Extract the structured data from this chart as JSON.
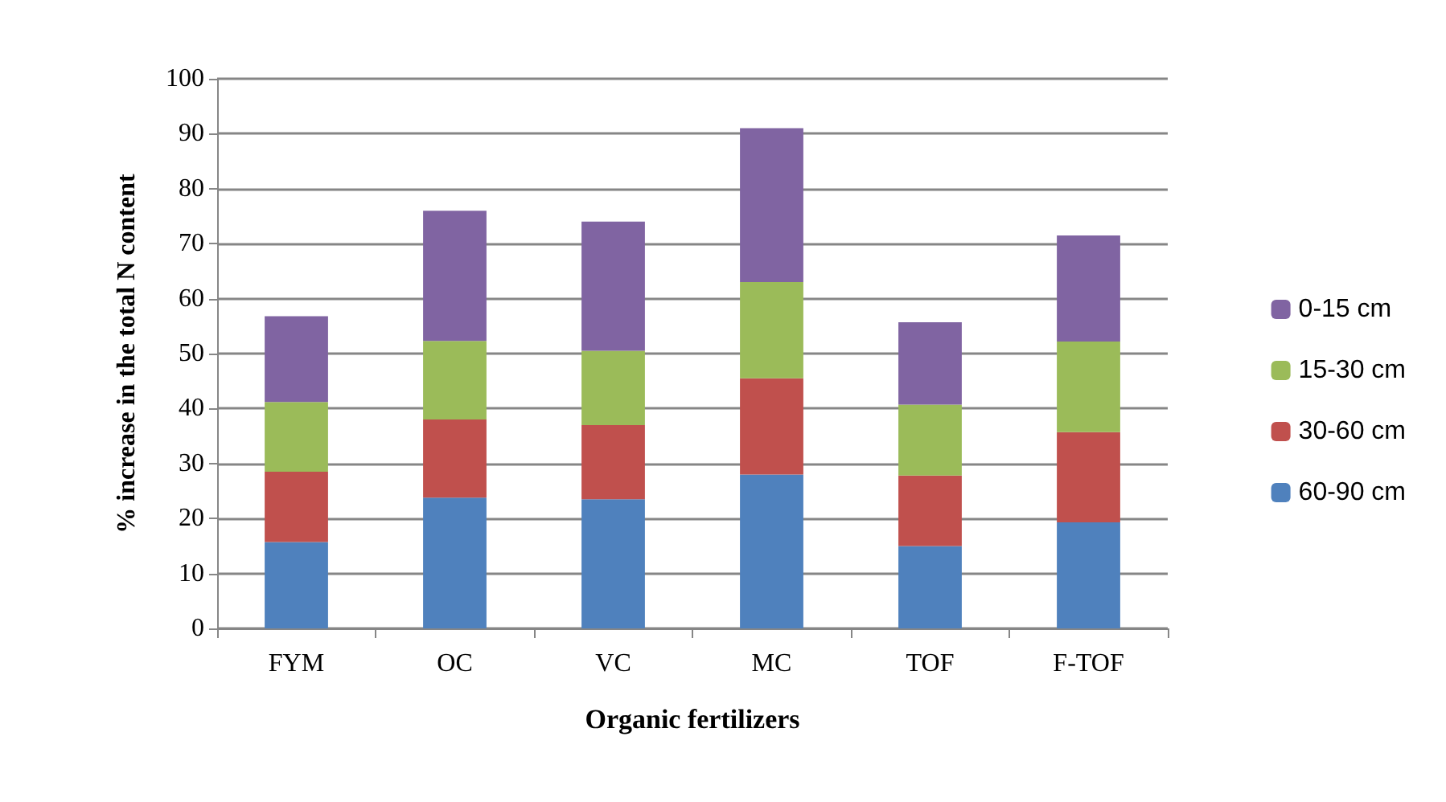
{
  "chart_data": {
    "type": "bar",
    "stacked": true,
    "xlabel": "Organic fertilizers",
    "ylabel": "% increase in the total N content",
    "categories": [
      "FYM",
      "OC",
      "VC",
      "MC",
      "TOF",
      "F-TOF"
    ],
    "series": [
      {
        "name": "60-90 cm",
        "color": "#4f81bd",
        "values": [
          15.7,
          23.8,
          23.5,
          28,
          15,
          19.3
        ]
      },
      {
        "name": "30-60 cm",
        "color": "#c0504d",
        "values": [
          12.8,
          14.2,
          13.5,
          17.5,
          12.8,
          16.4
        ]
      },
      {
        "name": "15-30 cm",
        "color": "#9bbb59",
        "values": [
          12.7,
          14.3,
          13.5,
          17.5,
          12.9,
          16.5
        ]
      },
      {
        "name": "0-15 cm",
        "color": "#8064a2",
        "values": [
          15.6,
          23.7,
          23.5,
          28,
          15,
          19.3
        ]
      }
    ],
    "ylim": [
      0,
      100
    ],
    "yticks": [
      0,
      10,
      20,
      30,
      40,
      50,
      60,
      70,
      80,
      90,
      100
    ],
    "grid": "y",
    "legend": "right"
  }
}
